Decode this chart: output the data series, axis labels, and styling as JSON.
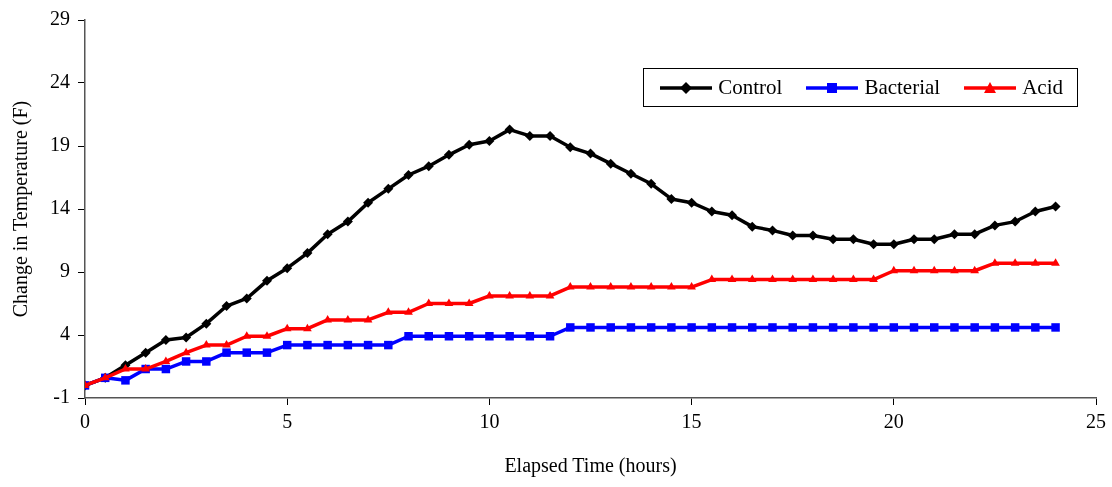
{
  "chart_data": {
    "type": "line",
    "xlabel": "Elapsed Time (hours)",
    "ylabel": "Change in Temperature (F)",
    "x": [
      0,
      0.5,
      1,
      1.5,
      2,
      2.5,
      3,
      3.5,
      4,
      4.5,
      5,
      5.5,
      6,
      6.5,
      7,
      7.5,
      8,
      8.5,
      9,
      9.5,
      10,
      10.5,
      11,
      11.5,
      12,
      12.5,
      13,
      13.5,
      14,
      14.5,
      15,
      15.5,
      16,
      16.5,
      17,
      17.5,
      18,
      18.5,
      19,
      19.5,
      20,
      20.5,
      21,
      21.5,
      22,
      22.5,
      23,
      23.5,
      24
    ],
    "series": [
      {
        "name": "Control",
        "color": "#000000",
        "marker": "diamond",
        "values": [
          0,
          0.6,
          1.6,
          2.6,
          3.6,
          3.8,
          4.9,
          6.3,
          6.9,
          8.3,
          9.3,
          10.5,
          12.0,
          13.0,
          14.5,
          15.6,
          16.7,
          17.4,
          18.3,
          19.1,
          19.4,
          20.3,
          19.8,
          19.8,
          18.9,
          18.4,
          17.6,
          16.8,
          16.0,
          14.8,
          14.5,
          13.8,
          13.5,
          12.6,
          12.3,
          11.9,
          11.9,
          11.6,
          11.6,
          11.2,
          11.2,
          11.6,
          11.6,
          12.0,
          12.0,
          12.7,
          13.0,
          13.8,
          14.2
        ]
      },
      {
        "name": "Bacterial",
        "color": "#0000ff",
        "marker": "square",
        "values": [
          0,
          0.6,
          0.4,
          1.3,
          1.3,
          1.9,
          1.9,
          2.6,
          2.6,
          2.6,
          3.2,
          3.2,
          3.2,
          3.2,
          3.2,
          3.2,
          3.9,
          3.9,
          3.9,
          3.9,
          3.9,
          3.9,
          3.9,
          3.9,
          4.6,
          4.6,
          4.6,
          4.6,
          4.6,
          4.6,
          4.6,
          4.6,
          4.6,
          4.6,
          4.6,
          4.6,
          4.6,
          4.6,
          4.6,
          4.6,
          4.6,
          4.6,
          4.6,
          4.6,
          4.6,
          4.6,
          4.6,
          4.6,
          4.6
        ]
      },
      {
        "name": "Acid",
        "color": "#ff0000",
        "marker": "triangle",
        "values": [
          0,
          0.6,
          1.3,
          1.3,
          1.9,
          2.6,
          3.2,
          3.2,
          3.9,
          3.9,
          4.5,
          4.5,
          5.2,
          5.2,
          5.2,
          5.8,
          5.8,
          6.5,
          6.5,
          6.5,
          7.1,
          7.1,
          7.1,
          7.1,
          7.8,
          7.8,
          7.8,
          7.8,
          7.8,
          7.8,
          7.8,
          8.4,
          8.4,
          8.4,
          8.4,
          8.4,
          8.4,
          8.4,
          8.4,
          8.4,
          9.1,
          9.1,
          9.1,
          9.1,
          9.1,
          9.7,
          9.7,
          9.7,
          9.7
        ]
      }
    ],
    "xlim": [
      0,
      25
    ],
    "xticks": [
      0,
      5,
      10,
      15,
      20,
      25
    ],
    "ylim": [
      -1,
      29
    ],
    "yticks": [
      -1,
      4,
      9,
      14,
      19,
      24,
      29
    ],
    "grid": false,
    "legend": "top right",
    "line_style": "solid"
  }
}
